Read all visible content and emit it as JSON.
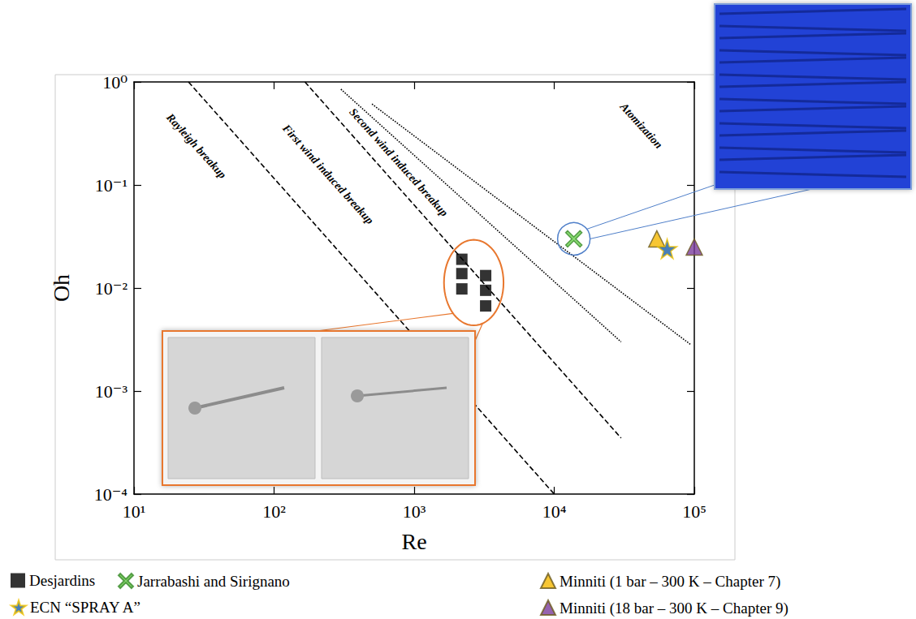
{
  "chart_data": {
    "type": "scatter",
    "x_label": "Re",
    "y_label": "Oh",
    "log": true,
    "grid": false,
    "legend": "bottom",
    "xlim": [
      10,
      100000
    ],
    "xticks": [
      {
        "value": 10,
        "label": "10¹"
      },
      {
        "value": 100,
        "label": "10²"
      },
      {
        "value": 1000,
        "label": "10³"
      },
      {
        "value": 10000,
        "label": "10⁴"
      },
      {
        "value": 100000,
        "label": "10⁵"
      }
    ],
    "ylim": [
      0.0001,
      1
    ],
    "yticks": [
      {
        "value": 0.0001,
        "label": "10⁻⁴"
      },
      {
        "value": 0.001,
        "label": "10⁻³"
      },
      {
        "value": 0.01,
        "label": "10⁻²"
      },
      {
        "value": 0.1,
        "label": "10⁻¹"
      },
      {
        "value": 1,
        "label": "10⁰"
      }
    ],
    "series": [
      {
        "name": "Desjardins",
        "type": "scatter",
        "marker": "square",
        "color": "#000000",
        "x": [
          2190,
          2190,
          2190,
          3240,
          3240,
          3240
        ],
        "values": [
          0.019,
          0.0138,
          0.0098,
          0.0132,
          0.0095,
          0.0067
        ]
      },
      {
        "name": "Jarrabashi and Sirignano",
        "type": "scatter",
        "marker": "x",
        "color": "#6ccf4f",
        "x": [
          13800
        ],
        "values": [
          0.03
        ]
      },
      {
        "name": "Minniti (1 bar – 300 K – Chapter 7)",
        "type": "scatter",
        "marker": "triangle",
        "color": "#f5b800",
        "x": [
          54000
        ],
        "values": [
          0.03
        ]
      },
      {
        "name": "ECN “SPRAY A”",
        "type": "scatter",
        "marker": "star",
        "color": "#1a5fa8",
        "x": [
          64000
        ],
        "values": [
          0.024
        ]
      },
      {
        "name": "Minniti (18 bar – 300 K – Chapter 9)",
        "type": "scatter",
        "marker": "triangle",
        "color": "#7b3c9c",
        "x": [
          100000
        ],
        "values": [
          0.025
        ]
      }
    ],
    "lines": [
      {
        "type": "line",
        "line_style": "dashed",
        "x": [
          24.5,
          10000
        ],
        "values": [
          1,
          0.0001
        ]
      },
      {
        "type": "line",
        "line_style": "dashed",
        "x": [
          166,
          30000
        ],
        "values": [
          1,
          0.00035
        ]
      },
      {
        "type": "line",
        "line_style": "dotted",
        "x": [
          300,
          30000
        ],
        "values": [
          0.85,
          0.003
        ]
      },
      {
        "type": "line",
        "line_style": "dotted",
        "x": [
          500,
          95000
        ],
        "values": [
          0.61,
          0.0028
        ]
      }
    ],
    "annotations": [
      {
        "text": "Rayleigh breakup",
        "x": 27.9,
        "y": 0.239
      },
      {
        "text": "First wind induced breakup",
        "x": 243,
        "y": 0.127
      },
      {
        "text": "Second wind induced breakup",
        "x": 776,
        "y": 0.166
      },
      {
        "text": "Atomization",
        "x": 41900,
        "y": 0.376
      }
    ]
  }
}
